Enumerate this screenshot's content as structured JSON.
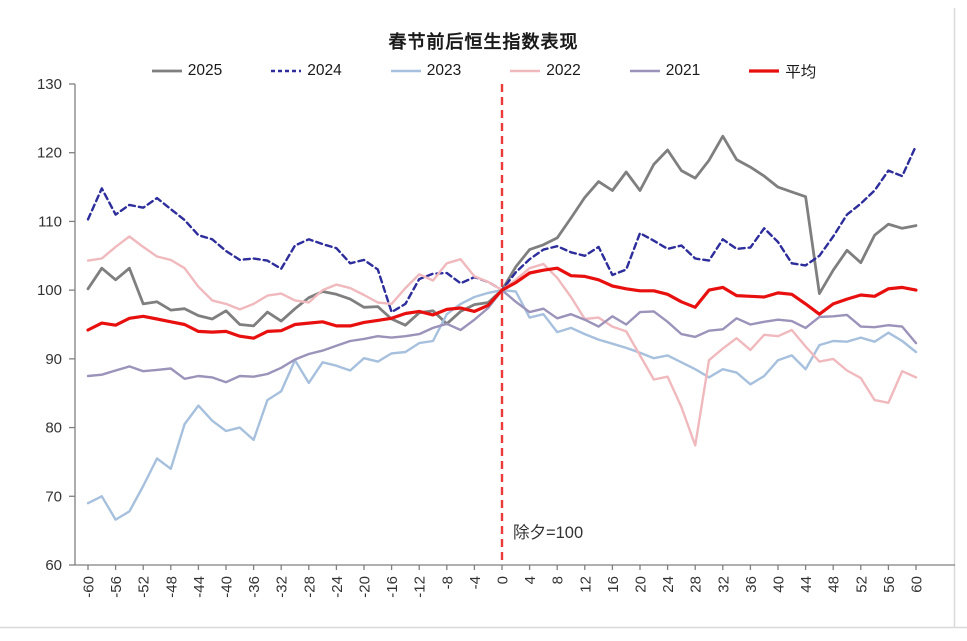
{
  "chart_data": {
    "type": "line",
    "title": "春节前后恒生指数表现",
    "xlabel": "",
    "ylabel": "",
    "xlim": [
      -60,
      60
    ],
    "ylim": [
      60,
      130
    ],
    "x_start": -60,
    "x_step": 2,
    "x_ticks": [
      -60,
      -56,
      -52,
      -48,
      -44,
      -40,
      -36,
      -32,
      -28,
      -24,
      -20,
      -16,
      -12,
      -8,
      -4,
      0,
      4,
      8,
      12,
      16,
      20,
      24,
      28,
      32,
      36,
      40,
      44,
      48,
      52,
      56,
      60
    ],
    "y_ticks": [
      60,
      70,
      80,
      90,
      100,
      110,
      120,
      130
    ],
    "grid": false,
    "legend_position": "top",
    "annotation": {
      "text": "除夕=100",
      "x": 0
    },
    "reference_line": {
      "axis": "x",
      "value": 0,
      "color": "#ec3b3b",
      "style": "dashed"
    },
    "axis_color": "#808080",
    "background_color": "#ffffff",
    "series": [
      {
        "name": "2025",
        "color": "#7f7f7f",
        "width": 2.8,
        "dash": null,
        "values": [
          100.2,
          103.2,
          101.5,
          103.2,
          98.0,
          98.3,
          97.1,
          97.3,
          96.3,
          95.8,
          97.0,
          95.0,
          94.8,
          96.8,
          95.5,
          97.3,
          98.9,
          99.8,
          99.4,
          98.7,
          97.5,
          97.6,
          95.8,
          94.9,
          96.7,
          97.0,
          95.1,
          96.9,
          97.9,
          98.2,
          100.0,
          103.4,
          105.9,
          106.6,
          107.6,
          110.5,
          113.5,
          115.8,
          114.5,
          117.2,
          114.5,
          118.3,
          120.4,
          117.4,
          116.3,
          118.9,
          122.4,
          119.0,
          117.9,
          116.6,
          115.0,
          114.3,
          113.6,
          99.5,
          102.9,
          105.8,
          104.0,
          108.0,
          109.6,
          109.0,
          109.4
        ]
      },
      {
        "name": "2024",
        "color": "#2d2d9b",
        "width": 2.4,
        "dash": "6 4",
        "values": [
          110.3,
          114.8,
          111.0,
          112.4,
          112.0,
          113.4,
          111.8,
          110.2,
          108.0,
          107.4,
          105.7,
          104.4,
          104.6,
          104.3,
          103.1,
          106.5,
          107.4,
          106.7,
          106.1,
          103.9,
          104.4,
          103.0,
          96.8,
          98.0,
          101.6,
          102.4,
          102.5,
          101.0,
          101.9,
          101.2,
          100.0,
          102.6,
          104.5,
          105.9,
          106.4,
          105.5,
          105.0,
          106.3,
          102.2,
          103.0,
          108.3,
          107.2,
          106.0,
          106.5,
          104.6,
          104.3,
          107.4,
          106.0,
          106.2,
          109.0,
          107.0,
          103.9,
          103.6,
          105.0,
          107.8,
          111.0,
          112.6,
          114.5,
          117.4,
          116.6,
          121.0
        ]
      },
      {
        "name": "2023",
        "color": "#a6c0dd",
        "width": 2.4,
        "dash": null,
        "values": [
          69.0,
          70.0,
          66.6,
          67.8,
          71.5,
          75.5,
          74.0,
          80.5,
          83.2,
          81.0,
          79.5,
          80.0,
          78.2,
          84.0,
          85.3,
          89.8,
          86.5,
          89.5,
          89.0,
          88.3,
          90.1,
          89.6,
          90.8,
          91.0,
          92.3,
          92.6,
          96.5,
          98.0,
          99.0,
          99.6,
          100.0,
          99.8,
          96.0,
          96.5,
          93.9,
          94.5,
          93.6,
          92.8,
          92.2,
          91.6,
          90.9,
          90.1,
          90.5,
          89.5,
          88.5,
          87.3,
          88.5,
          88.0,
          86.3,
          87.5,
          89.8,
          90.5,
          88.5,
          92.0,
          92.6,
          92.5,
          93.1,
          92.5,
          93.8,
          92.6,
          91.0
        ]
      },
      {
        "name": "2022",
        "color": "#f0b9bd",
        "width": 2.4,
        "dash": null,
        "values": [
          104.3,
          104.6,
          106.3,
          107.8,
          106.3,
          104.9,
          104.4,
          103.2,
          100.5,
          98.5,
          98.0,
          97.2,
          98.0,
          99.2,
          99.5,
          98.5,
          98.2,
          100.0,
          100.8,
          100.3,
          99.3,
          98.2,
          98.0,
          100.3,
          102.3,
          101.4,
          103.9,
          104.5,
          102.0,
          101.2,
          100.0,
          101.5,
          103.2,
          103.8,
          101.8,
          99.0,
          95.8,
          96.0,
          94.7,
          94.0,
          90.5,
          87.0,
          87.4,
          83.0,
          77.4,
          89.8,
          91.5,
          93.0,
          91.3,
          93.5,
          93.3,
          94.2,
          91.8,
          89.6,
          90.0,
          88.3,
          87.2,
          84.0,
          83.6,
          88.2,
          87.3
        ]
      },
      {
        "name": "2021",
        "color": "#9b93ba",
        "width": 2.4,
        "dash": null,
        "values": [
          87.5,
          87.7,
          88.3,
          88.9,
          88.2,
          88.4,
          88.6,
          87.1,
          87.5,
          87.3,
          86.6,
          87.5,
          87.4,
          87.8,
          88.7,
          89.9,
          90.7,
          91.2,
          91.9,
          92.6,
          92.9,
          93.3,
          93.1,
          93.3,
          93.6,
          94.5,
          95.1,
          94.2,
          95.7,
          97.4,
          100.0,
          98.3,
          96.8,
          97.3,
          95.9,
          96.5,
          95.7,
          94.7,
          96.2,
          95.0,
          96.8,
          96.9,
          95.4,
          93.6,
          93.2,
          94.1,
          94.3,
          95.9,
          95.0,
          95.4,
          95.7,
          95.5,
          94.5,
          96.1,
          96.2,
          96.4,
          94.7,
          94.6,
          94.9,
          94.7,
          92.3
        ]
      },
      {
        "name": "平均",
        "color": "#e8100f",
        "width": 3.2,
        "dash": null,
        "values": [
          94.2,
          95.2,
          94.9,
          95.9,
          96.2,
          95.8,
          95.4,
          95.0,
          94.0,
          93.9,
          94.0,
          93.3,
          93.0,
          94.0,
          94.1,
          95.0,
          95.2,
          95.4,
          94.8,
          94.8,
          95.3,
          95.6,
          95.9,
          96.6,
          96.9,
          96.4,
          97.2,
          97.4,
          96.9,
          97.8,
          100.0,
          101.1,
          102.5,
          102.9,
          103.2,
          102.1,
          102.0,
          101.5,
          100.6,
          100.2,
          99.9,
          99.9,
          99.4,
          98.3,
          97.5,
          100.0,
          100.4,
          99.2,
          99.1,
          99.0,
          99.6,
          99.4,
          98.0,
          96.5,
          98.0,
          98.7,
          99.3,
          99.1,
          100.2,
          100.4,
          100.0
        ]
      }
    ]
  }
}
